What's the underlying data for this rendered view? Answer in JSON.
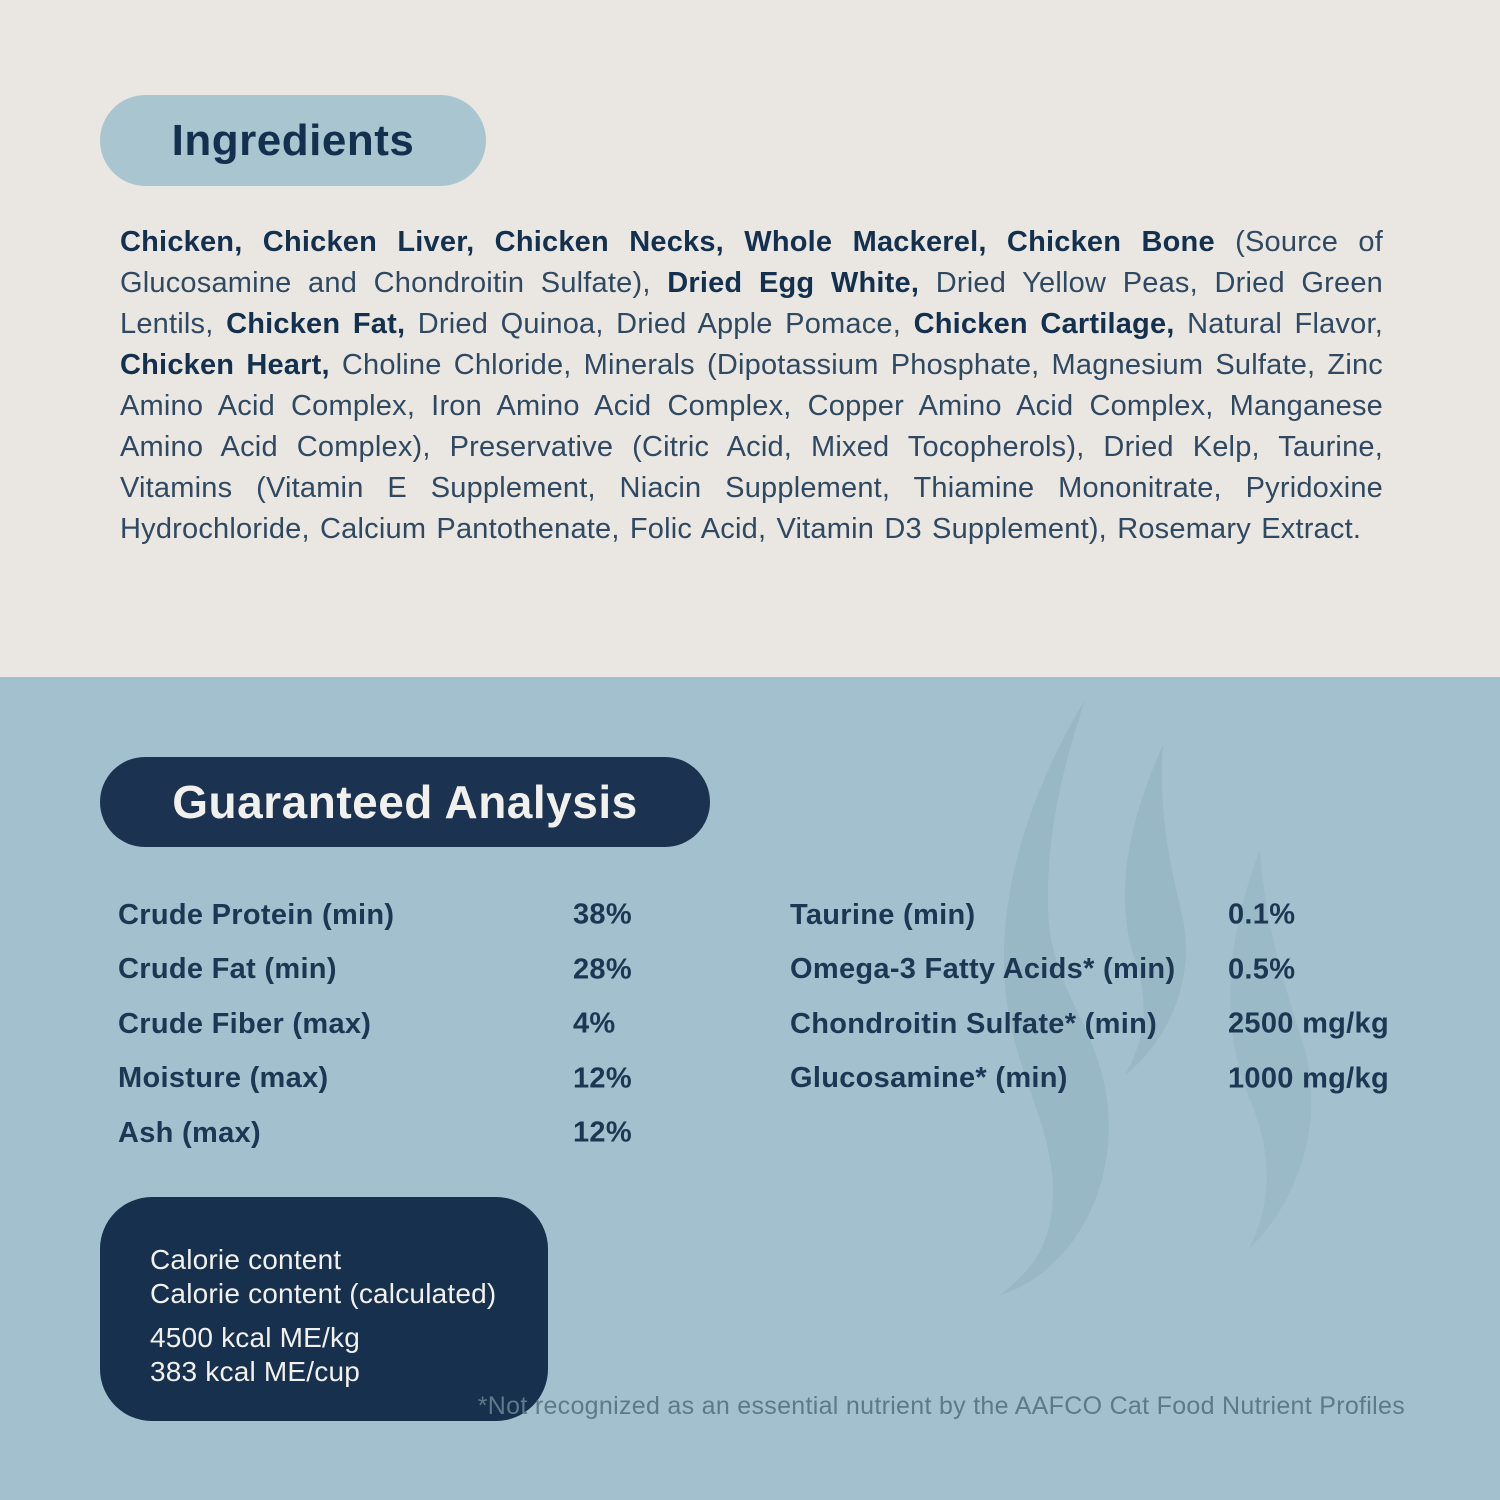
{
  "colors": {
    "top_background": "#EAE6E1",
    "bottom_background": "#A2C0CD",
    "heading_pill_light": "#A9C5D0",
    "heading_pill_dark": "#1B3251",
    "text_navy": "#1C3653",
    "footnote_gray_blue": "#5E7A8A"
  },
  "ingredients": {
    "heading": "Ingredients",
    "segments": [
      {
        "text": "Chicken, Chicken Liver, Chicken Necks, Whole Mackerel, Chicken Bone",
        "bold": true
      },
      {
        "text": " (Source of Glucosamine and Chondroitin Sulfate), ",
        "bold": false
      },
      {
        "text": "Dried Egg White,",
        "bold": true
      },
      {
        "text": " Dried Yellow Peas, Dried Green Lentils, ",
        "bold": false
      },
      {
        "text": "Chicken Fat,",
        "bold": true
      },
      {
        "text": " Dried Quinoa, Dried Apple Pomace, ",
        "bold": false
      },
      {
        "text": "Chicken Cartilage,",
        "bold": true
      },
      {
        "text": " Natural Flavor, ",
        "bold": false
      },
      {
        "text": "Chicken Heart,",
        "bold": true
      },
      {
        "text": " Choline Chloride, Minerals (Dipotassium Phosphate, Magnesium Sulfate, Zinc Amino Acid Complex, Iron Amino Acid Complex, Copper Amino Acid Complex, Manganese Amino Acid Complex), Preservative (Citric Acid, Mixed Tocopherols), Dried Kelp, Taurine, Vitamins (Vitamin E Supplement, Niacin Supplement, Thiamine Mononitrate, Pyridoxine Hydrochloride, Calcium Pantothenate, Folic Acid, Vitamin D3 Supplement), Rosemary Extract.",
        "bold": false
      }
    ]
  },
  "analysis": {
    "heading": "Guaranteed Analysis",
    "left_rows": [
      {
        "label": "Crude Protein (min)",
        "value": "38%"
      },
      {
        "label": "Crude Fat (min)",
        "value": "28%"
      },
      {
        "label": "Crude Fiber (max)",
        "value": "4%"
      },
      {
        "label": "Moisture (max)",
        "value": "12%"
      },
      {
        "label": "Ash (max)",
        "value": "12%"
      }
    ],
    "right_rows": [
      {
        "label": "Taurine (min)",
        "value": "0.1%"
      },
      {
        "label": "Omega-3 Fatty Acids* (min)",
        "value": "0.5%"
      },
      {
        "label": "Chondroitin Sulfate* (min)",
        "value": "2500 mg/kg"
      },
      {
        "label": "Glucosamine* (min)",
        "value": "1000 mg/kg"
      }
    ],
    "footnote": "*Not recognized as an essential nutrient by the AAFCO Cat Food Nutrient Profiles"
  },
  "calorie": {
    "title_lines": [
      "Calorie content",
      "Calorie content (calculated)"
    ],
    "value_lines": [
      "4500 kcal ME/kg",
      "383 kcal ME/cup"
    ]
  }
}
